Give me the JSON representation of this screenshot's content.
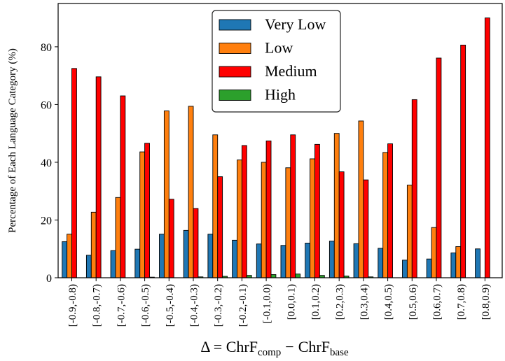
{
  "chart_data": {
    "type": "bar",
    "title": "",
    "xlabel": "Δ = ChrF",
    "xlabel_sub1": "comp",
    "xlabel_minus": "−",
    "xlabel_sub2": "base",
    "ylabel": "Percentage of Each Language Category (%)",
    "ylim": [
      0,
      95
    ],
    "yticks": [
      0,
      20,
      40,
      60,
      80
    ],
    "grid": false,
    "legend_position": "top-center",
    "categories": [
      "[-0.9,-0.8)",
      "[-0.8,-0.7)",
      "[-0.7,-0.6)",
      "[-0.6,-0.5)",
      "[-0.5,-0.4)",
      "[-0.4,-0.3)",
      "[-0.3,-0.2)",
      "[-0.2,-0.1)",
      "[-0.1,0.0)",
      "[0.0,0.1)",
      "[0.1,0.2)",
      "[0.2,0.3)",
      "[0.3,0.4)",
      "[0.4,0.5)",
      "[0.5,0.6)",
      "[0.6,0.7)",
      "[0.7,0.8)",
      "[0.8,0.9)"
    ],
    "series": [
      {
        "name": "Very Low",
        "color": "#1f77b4",
        "values": [
          12.5,
          7.8,
          9.4,
          9.9,
          15.1,
          16.4,
          15.1,
          13.0,
          11.7,
          11.2,
          12.0,
          12.7,
          11.8,
          10.2,
          6.1,
          6.5,
          8.6,
          10.0
        ]
      },
      {
        "name": "Low",
        "color": "#ff7f0e",
        "values": [
          15.1,
          22.7,
          27.8,
          43.6,
          57.8,
          59.4,
          49.5,
          40.8,
          40.0,
          38.1,
          41.2,
          50.0,
          54.3,
          43.4,
          32.1,
          17.4,
          10.8,
          0
        ]
      },
      {
        "name": "Medium",
        "color": "#ff0000",
        "values": [
          72.5,
          69.6,
          63.0,
          46.6,
          27.2,
          24.0,
          35.0,
          45.8,
          47.4,
          49.5,
          46.2,
          36.7,
          33.9,
          46.4,
          61.7,
          76.1,
          80.6,
          90.0
        ]
      },
      {
        "name": "High",
        "color": "#2ca02c",
        "values": [
          0.0,
          0.0,
          0.0,
          0.2,
          0.0,
          0.3,
          0.5,
          0.8,
          1.1,
          1.3,
          0.8,
          0.6,
          0.3,
          0.0,
          0.0,
          0.0,
          0.0,
          0.0
        ]
      }
    ]
  }
}
